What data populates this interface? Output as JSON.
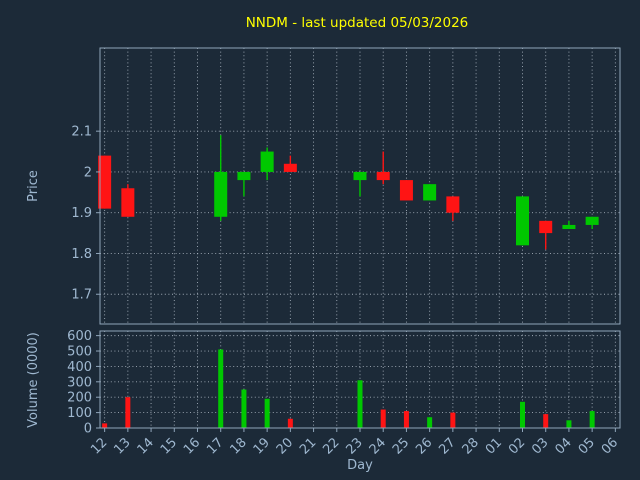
{
  "chart_data": {
    "type": "candlestick",
    "title": "NNDM - last updated 05/03/2026",
    "x_axis": {
      "label": "Day",
      "categories": [
        "12",
        "13",
        "14",
        "15",
        "16",
        "17",
        "18",
        "19",
        "20",
        "21",
        "22",
        "23",
        "24",
        "25",
        "26",
        "27",
        "28",
        "01",
        "02",
        "03",
        "04",
        "05",
        "06"
      ]
    },
    "price_axis": {
      "label": "Price",
      "tick_values": [
        2.1,
        2,
        1.9,
        1.8,
        1.7
      ],
      "tick_labels": [
        "2.1",
        "2",
        "1.9",
        "1.8",
        "1.7"
      ],
      "ylim": [
        1.627,
        2.304
      ]
    },
    "volume_axis": {
      "label": "Volume (0000)",
      "tick_values": [
        600,
        500,
        400,
        300,
        200,
        100,
        0
      ],
      "tick_labels": [
        "600",
        "500",
        "400",
        "300",
        "200",
        "100",
        "0"
      ],
      "ylim": [
        0,
        630
      ]
    },
    "colors": {
      "background": "#1c2a38",
      "up": "#00c800",
      "down": "#ff1414",
      "grid": "#cfd9e4",
      "text": "#9fb8d0",
      "spine": "#8fa5ba",
      "title": "#ffff00"
    },
    "candles": [
      {
        "day": "12",
        "open": 2.04,
        "high": 2.04,
        "low": 1.91,
        "close": 1.91,
        "volume": 30
      },
      {
        "day": "13",
        "open": 1.96,
        "high": 1.97,
        "low": 1.89,
        "close": 1.89,
        "volume": 200
      },
      {
        "day": "17",
        "open": 1.89,
        "high": 2.09,
        "low": 1.88,
        "close": 2.0,
        "volume": 510
      },
      {
        "day": "18",
        "open": 1.98,
        "high": 2.0,
        "low": 1.94,
        "close": 2.0,
        "volume": 250
      },
      {
        "day": "19",
        "open": 2.0,
        "high": 2.06,
        "low": 1.98,
        "close": 2.05,
        "volume": 190
      },
      {
        "day": "20",
        "open": 2.02,
        "high": 2.04,
        "low": 2.0,
        "close": 2.0,
        "volume": 60
      },
      {
        "day": "23",
        "open": 1.98,
        "high": 2.0,
        "low": 1.94,
        "close": 2.0,
        "volume": 310
      },
      {
        "day": "24",
        "open": 2.0,
        "high": 2.05,
        "low": 1.97,
        "close": 1.98,
        "volume": 120
      },
      {
        "day": "25",
        "open": 1.98,
        "high": 1.98,
        "low": 1.93,
        "close": 1.93,
        "volume": 110
      },
      {
        "day": "26",
        "open": 1.93,
        "high": 1.97,
        "low": 1.93,
        "close": 1.97,
        "volume": 70
      },
      {
        "day": "27",
        "open": 1.94,
        "high": 1.94,
        "low": 1.88,
        "close": 1.9,
        "volume": 100
      },
      {
        "day": "02",
        "open": 1.82,
        "high": 1.94,
        "low": 1.82,
        "close": 1.94,
        "volume": 170
      },
      {
        "day": "03",
        "open": 1.88,
        "high": 1.88,
        "low": 1.81,
        "close": 1.85,
        "volume": 90
      },
      {
        "day": "04",
        "open": 1.86,
        "high": 1.88,
        "low": 1.86,
        "close": 1.87,
        "volume": 50
      },
      {
        "day": "05",
        "open": 1.87,
        "high": 1.89,
        "low": 1.86,
        "close": 1.89,
        "volume": 110
      }
    ]
  }
}
